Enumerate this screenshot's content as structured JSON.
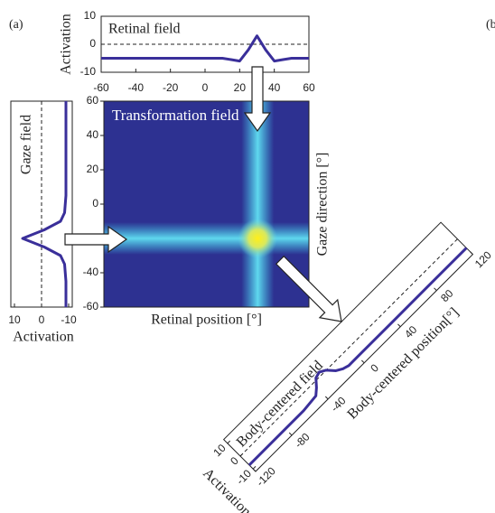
{
  "panel_labels": [
    "(a)",
    "(b"
  ],
  "chart_data": [
    {
      "type": "line",
      "title": "Retinal field",
      "y_label": "Activation",
      "x": [
        -60,
        -40,
        -20,
        0,
        10,
        15,
        20,
        25,
        30,
        35,
        40,
        45,
        50,
        60
      ],
      "series": [
        {
          "color": "#3a2f9a",
          "values": [
            -5,
            -5,
            -5,
            -5,
            -5,
            -5.5,
            -6,
            -2,
            3,
            -2,
            -6,
            -5.5,
            -5,
            -5
          ]
        }
      ],
      "xlim": [
        -60,
        60
      ],
      "xticks": [
        -60,
        -40,
        -20,
        0,
        20,
        40,
        60
      ],
      "ylim": [
        -10,
        10
      ],
      "yticks": [
        -10,
        0,
        10
      ]
    },
    {
      "type": "line",
      "orientation": "vertical",
      "title": "Gaze field",
      "y_label": "Activation",
      "x": [
        -60,
        -45,
        -35,
        -30,
        -25,
        -20,
        -15,
        -10,
        -5,
        5,
        20,
        40,
        60
      ],
      "series": [
        {
          "color": "#3a2f9a",
          "values": [
            -9,
            -9,
            -8.5,
            -7,
            -1,
            7,
            -1,
            -7,
            -8.5,
            -9,
            -9,
            -9,
            -9
          ]
        }
      ],
      "xlim": [
        -60,
        60
      ],
      "ylim": [
        -10,
        10
      ],
      "yticks": [
        10,
        0,
        -10
      ]
    },
    {
      "type": "heatmap",
      "title": "Transformation field",
      "x_label": "Retinal position [°]",
      "y_label": "Gaze direction [°]",
      "peak_x": 30,
      "peak_y": -20,
      "xlim": [
        -60,
        60
      ],
      "ylim": [
        -60,
        60
      ],
      "yticks": [
        -60,
        -40,
        -20,
        0,
        20,
        40,
        60
      ]
    },
    {
      "type": "line",
      "orientation": "diagonal",
      "title": "Body-centered field",
      "x_label": "Body-centered position[°]",
      "y_label": "Activation",
      "x": [
        -120,
        -80,
        -60,
        -45,
        -40,
        -35,
        -30,
        -25,
        -20,
        -15,
        -10,
        0,
        40,
        80,
        120
      ],
      "series": [
        {
          "color": "#3a2f9a",
          "values": [
            -7,
            -7,
            -7,
            -6,
            -3,
            1,
            2,
            0,
            -4,
            -6,
            -7,
            -7,
            -7,
            -7,
            -7
          ]
        }
      ],
      "xlim": [
        -120,
        120
      ],
      "xticks": [
        -120,
        -80,
        -40,
        0,
        40,
        80,
        120
      ],
      "ylim": [
        -10,
        10
      ],
      "yticks": [
        -10,
        0,
        10
      ]
    }
  ]
}
